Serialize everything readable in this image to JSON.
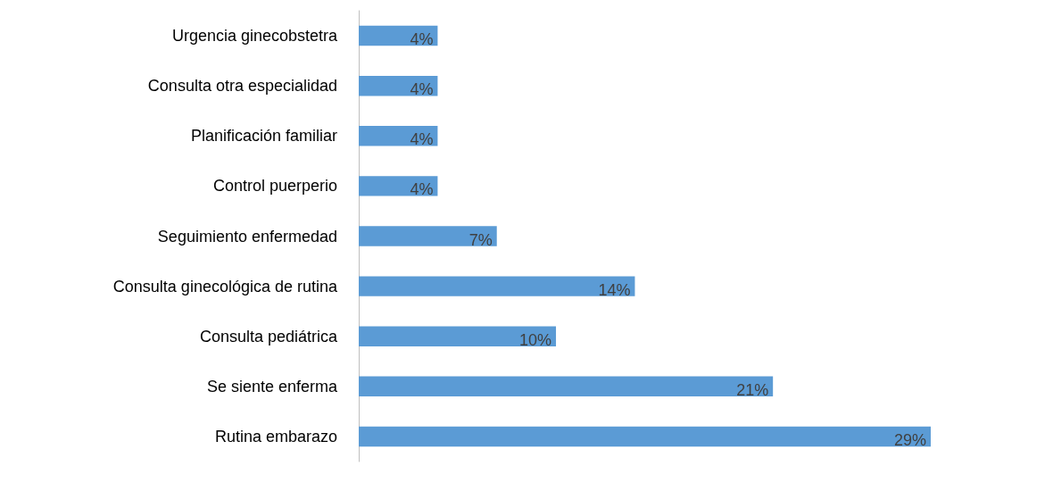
{
  "chart_data": {
    "type": "bar",
    "orientation": "horizontal",
    "categories": [
      "Urgencia ginecobstetra",
      "Consulta otra especialidad",
      "Planificación familiar",
      "Control puerperio",
      "Seguimiento enfermedad",
      "Consulta ginecológica de rutina",
      "Consulta pediátrica",
      "Se siente enferma",
      "Rutina embarazo"
    ],
    "values": [
      4,
      4,
      4,
      4,
      7,
      14,
      10,
      21,
      29
    ],
    "value_labels": [
      "4%",
      "4%",
      "4%",
      "4%",
      "7%",
      "14%",
      "10%",
      "21%",
      "29%"
    ],
    "color": "#5b9bd5"
  }
}
